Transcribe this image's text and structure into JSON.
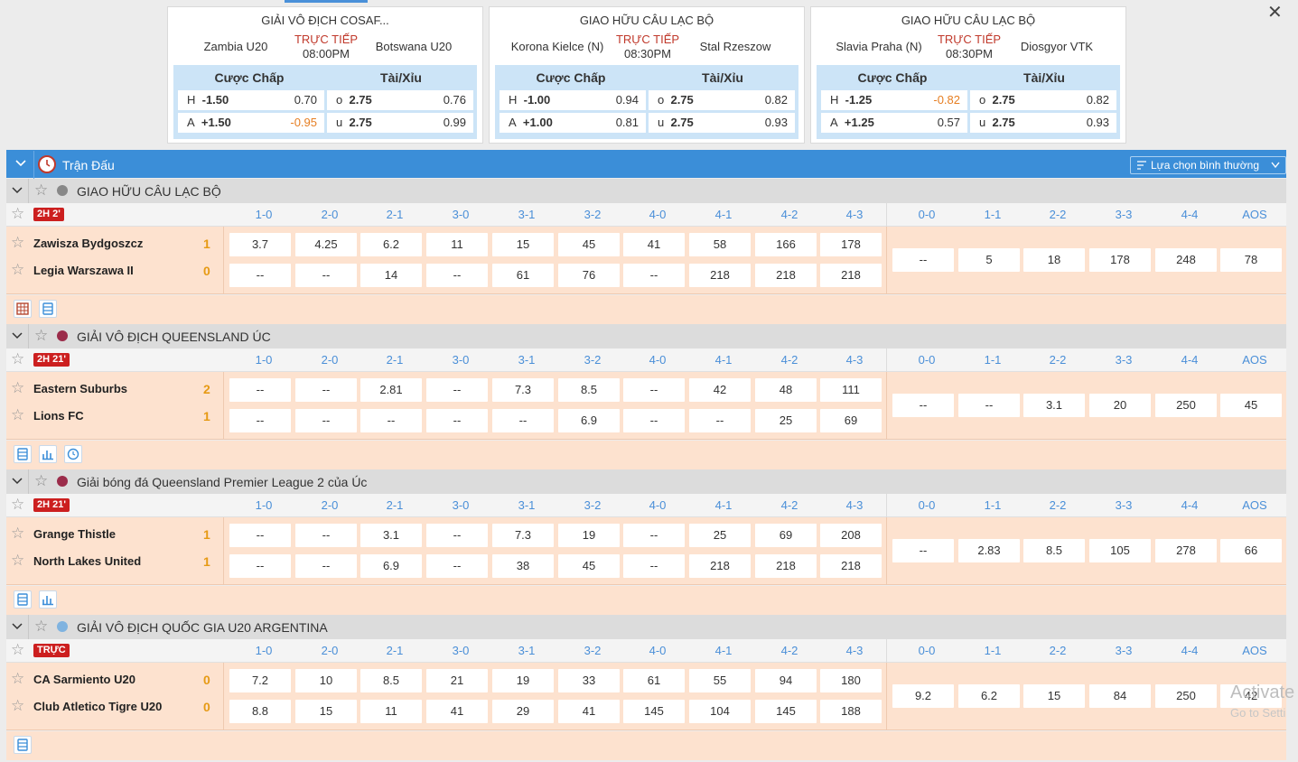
{
  "featured": [
    {
      "league": "GIẢI VÔ ĐỊCH COSAF...",
      "home": "Zambia U20",
      "away": "Botswana U20",
      "live": "TRỰC TIẾP",
      "time": "08:00PM",
      "hcap_label": "Cược Chấp",
      "ou_label": "Tài/Xỉu",
      "h_label": "H",
      "h_line": "-1.50",
      "h_odds": "0.70",
      "a_label": "A",
      "a_line": "+1.50",
      "a_odds": "-0.95",
      "o_label": "o",
      "o_line": "2.75",
      "o_odds": "0.76",
      "u_label": "u",
      "u_line": "2.75",
      "u_odds": "0.99"
    },
    {
      "league": "GIAO HỮU CÂU LẠC BỘ",
      "home": "Korona Kielce (N)",
      "away": "Stal Rzeszow",
      "live": "TRỰC TIẾP",
      "time": "08:30PM",
      "hcap_label": "Cược Chấp",
      "ou_label": "Tài/Xỉu",
      "h_label": "H",
      "h_line": "-1.00",
      "h_odds": "0.94",
      "a_label": "A",
      "a_line": "+1.00",
      "a_odds": "0.81",
      "o_label": "o",
      "o_line": "2.75",
      "o_odds": "0.82",
      "u_label": "u",
      "u_line": "2.75",
      "u_odds": "0.93"
    },
    {
      "league": "GIAO HỮU CÂU LẠC BỘ",
      "home": "Slavia Praha (N)",
      "away": "Diosgyor VTK",
      "live": "TRỰC TIẾP",
      "time": "08:30PM",
      "hcap_label": "Cược Chấp",
      "ou_label": "Tài/Xỉu",
      "h_label": "H",
      "h_line": "-1.25",
      "h_odds": "-0.82",
      "a_label": "A",
      "a_line": "+1.25",
      "a_odds": "0.57",
      "o_label": "o",
      "o_line": "2.75",
      "o_odds": "0.82",
      "u_label": "u",
      "u_line": "2.75",
      "u_odds": "0.93"
    }
  ],
  "section_title": "Trận Đấu",
  "sort_select": "Lựa chọn bình thường",
  "score_headers": [
    "1-0",
    "2-0",
    "2-1",
    "3-0",
    "3-1",
    "3-2",
    "4-0",
    "4-1",
    "4-2",
    "4-3",
    "0-0",
    "1-1",
    "2-2",
    "3-3",
    "4-4",
    "AOS"
  ],
  "matches": [
    {
      "league": "GIAO HỮU CÂU LẠC BỘ",
      "status": "2H 2'",
      "home": "Zawisza Bydgoszcz",
      "away": "Legia Warszawa II",
      "home_goals": "1",
      "away_goals": "0",
      "home_odds": [
        "3.7",
        "4.25",
        "6.2",
        "11",
        "15",
        "45",
        "41",
        "58",
        "166",
        "178"
      ],
      "away_odds": [
        "--",
        "--",
        "14",
        "--",
        "61",
        "76",
        "--",
        "218",
        "218",
        "218"
      ],
      "draw_odds": [
        "--",
        "5",
        "18",
        "178",
        "248",
        "78"
      ]
    },
    {
      "league": "GIẢI VÔ ĐỊCH QUEENSLAND ÚC",
      "status": "2H 21'",
      "home": "Eastern Suburbs",
      "away": "Lions FC",
      "home_goals": "2",
      "away_goals": "1",
      "home_odds": [
        "--",
        "--",
        "2.81",
        "--",
        "7.3",
        "8.5",
        "--",
        "42",
        "48",
        "111"
      ],
      "away_odds": [
        "--",
        "--",
        "--",
        "--",
        "--",
        "6.9",
        "--",
        "--",
        "25",
        "69"
      ],
      "draw_odds": [
        "--",
        "--",
        "3.1",
        "20",
        "250",
        "45"
      ]
    },
    {
      "league": "Giải bóng đá Queensland Premier League 2 của Úc",
      "status": "2H 21'",
      "home": "Grange Thistle",
      "away": "North Lakes United",
      "home_goals": "1",
      "away_goals": "1",
      "home_odds": [
        "--",
        "--",
        "3.1",
        "--",
        "7.3",
        "19",
        "--",
        "25",
        "69",
        "208"
      ],
      "away_odds": [
        "--",
        "--",
        "6.9",
        "--",
        "38",
        "45",
        "--",
        "218",
        "218",
        "218"
      ],
      "draw_odds": [
        "--",
        "2.83",
        "8.5",
        "105",
        "278",
        "66"
      ]
    },
    {
      "league": "GIẢI VÔ ĐỊCH QUỐC GIA U20 ARGENTINA",
      "status": "TRỰC",
      "home": "CA Sarmiento U20",
      "away": "Club Atletico Tigre U20",
      "home_goals": "0",
      "away_goals": "0",
      "home_odds": [
        "7.2",
        "10",
        "8.5",
        "21",
        "19",
        "33",
        "61",
        "55",
        "94",
        "180"
      ],
      "away_odds": [
        "8.8",
        "15",
        "11",
        "41",
        "29",
        "41",
        "145",
        "104",
        "145",
        "188"
      ],
      "draw_odds": [
        "9.2",
        "6.2",
        "15",
        "84",
        "250",
        "42"
      ]
    }
  ],
  "watermark": "Activate",
  "watermark_sub": "Go to Setti",
  "colors": {
    "accent": "#3b8ed8",
    "live_tag": "#cc1f1f",
    "row_bg": "#fde2cf",
    "negative": "#e67e22",
    "goals": "#e69a14",
    "header_score": "#4a8fd8"
  }
}
